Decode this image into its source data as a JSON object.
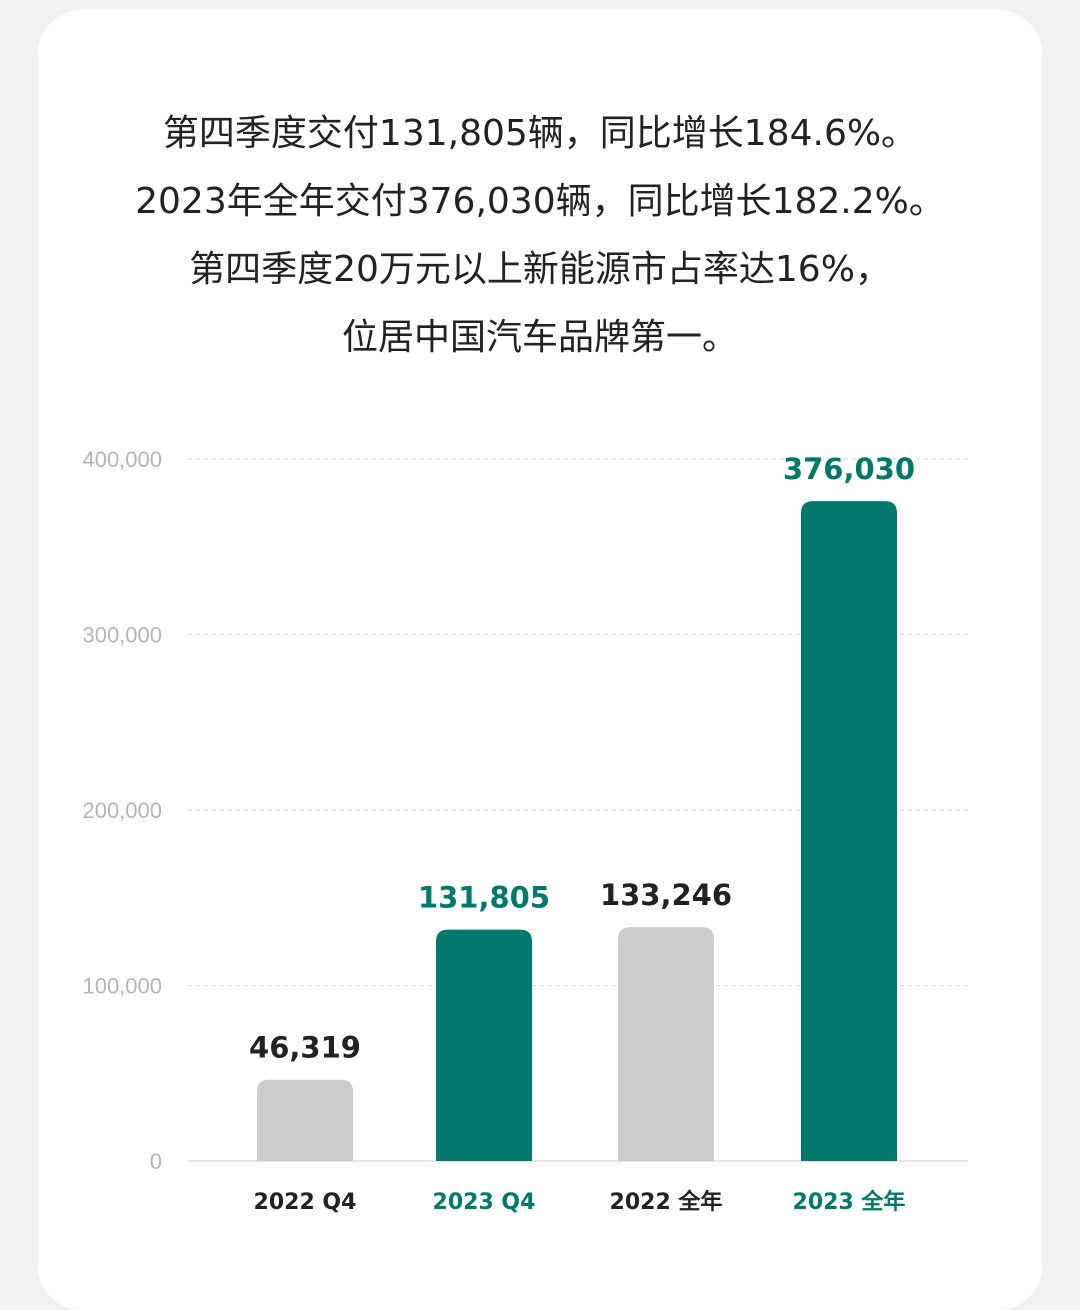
{
  "headline": [
    "第四季度交付131,805辆，同比增长184.6%。",
    "2023年全年交付376,030辆，同比增长182.2%。",
    "第四季度20万元以上新能源市占率达16%，",
    "位居中国汽车品牌第一。"
  ],
  "colors": {
    "accent": "#00796b",
    "neutral": "#cccccc",
    "dark_text": "#222222",
    "axis_text": "#b5b5b5"
  },
  "chart_data": {
    "type": "bar",
    "categories": [
      "2022 Q4",
      "2023 Q4",
      "2022 全年",
      "2023 全年"
    ],
    "values": [
      46319,
      131805,
      133246,
      376030
    ],
    "value_labels": [
      "46,319",
      "131,805",
      "133,246",
      "376,030"
    ],
    "highlight": [
      false,
      true,
      false,
      true
    ],
    "ylim": [
      0,
      400000
    ],
    "yticks": [
      0,
      100000,
      200000,
      300000,
      400000
    ],
    "ytick_labels": [
      "0",
      "100,000",
      "200,000",
      "300,000",
      "400,000"
    ],
    "grid": true,
    "legend": "none"
  }
}
